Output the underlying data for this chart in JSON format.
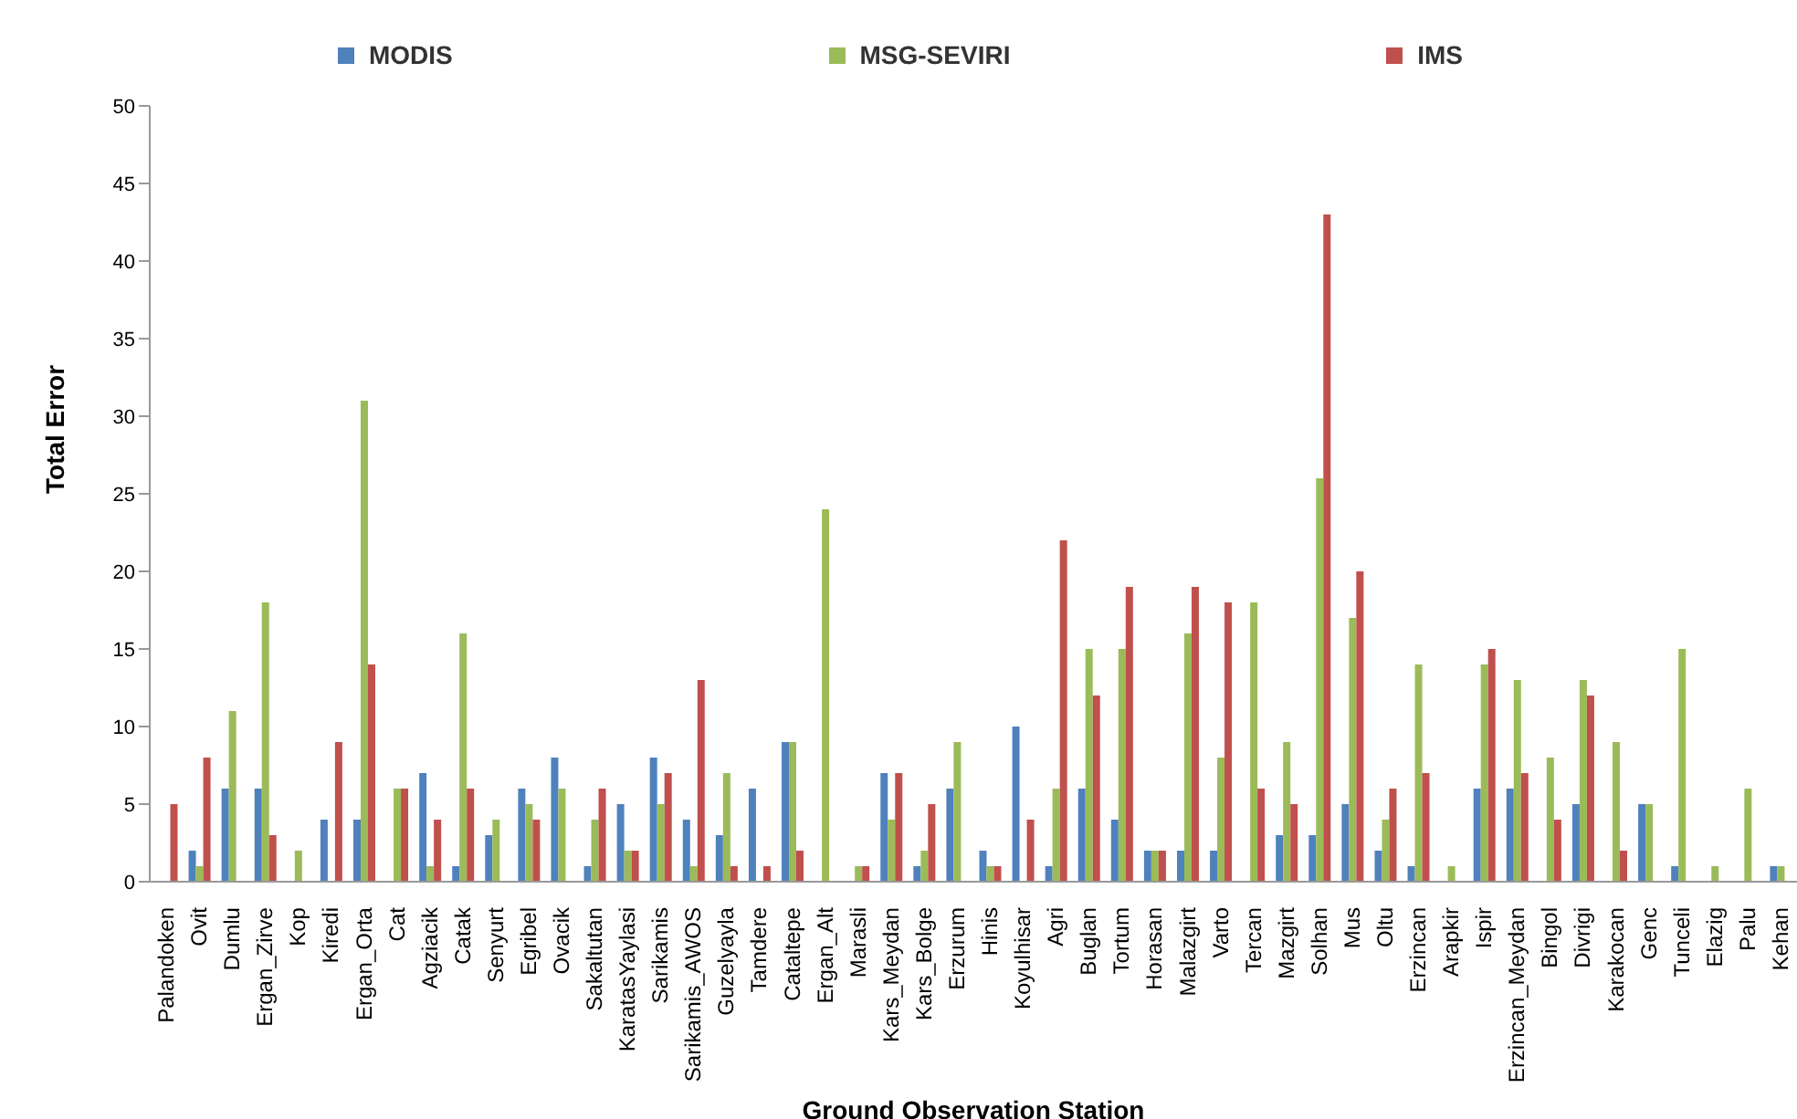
{
  "chart_data": {
    "type": "bar",
    "xlabel": "Ground Observation Station",
    "ylabel": "Total Error",
    "categories": [
      "Palandoken",
      "Ovit",
      "Dumlu",
      "Ergan_Zirve",
      "Kop",
      "Kiredi",
      "Ergan_Orta",
      "Cat",
      "Agziacik",
      "Catak",
      "Senyurt",
      "Egribel",
      "Ovacik",
      "Sakaltutan",
      "KaratasYaylasi",
      "Sarikamis",
      "Sarikamis_AWOS",
      "Guzelyayla",
      "Tamdere",
      "Cataltepe",
      "Ergan_Alt",
      "Marasli",
      "Kars_Meydan",
      "Kars_Bolge",
      "Erzurum",
      "Hinis",
      "Koyulhisar",
      "Agri",
      "Buglan",
      "Tortum",
      "Horasan",
      "Malazgirt",
      "Varto",
      "Tercan",
      "Mazgirt",
      "Solhan",
      "Mus",
      "Oltu",
      "Erzincan",
      "Arapkir",
      "Ispir",
      "Erzincan_Meydan",
      "Bingol",
      "Divrigi",
      "Karakocan",
      "Genc",
      "Tunceli",
      "Elazig",
      "Palu",
      "Kehan"
    ],
    "series": [
      {
        "name": "MODIS",
        "color": "#4f81bd",
        "values": [
          0,
          2,
          6,
          6,
          0,
          4,
          4,
          0,
          7,
          1,
          3,
          6,
          8,
          1,
          5,
          8,
          4,
          3,
          6,
          9,
          0,
          0,
          7,
          1,
          6,
          2,
          10,
          1,
          6,
          4,
          2,
          2,
          2,
          0,
          3,
          3,
          5,
          2,
          1,
          0,
          6,
          6,
          0,
          5,
          0,
          5,
          1,
          0,
          0,
          1
        ]
      },
      {
        "name": "MSG-SEVIRI",
        "color": "#9bbb59",
        "values": [
          0,
          1,
          11,
          18,
          2,
          0,
          31,
          6,
          1,
          16,
          4,
          5,
          6,
          4,
          2,
          5,
          1,
          7,
          0,
          9,
          24,
          1,
          4,
          2,
          9,
          1,
          0,
          6,
          15,
          15,
          2,
          16,
          8,
          18,
          9,
          26,
          17,
          4,
          14,
          1,
          14,
          13,
          8,
          13,
          9,
          5,
          15,
          1,
          6,
          1
        ]
      },
      {
        "name": "IMS",
        "color": "#c0504d",
        "values": [
          5,
          8,
          0,
          3,
          0,
          9,
          14,
          6,
          4,
          6,
          0,
          4,
          0,
          6,
          2,
          7,
          13,
          1,
          1,
          2,
          0,
          1,
          7,
          5,
          0,
          1,
          4,
          22,
          12,
          19,
          2,
          19,
          18,
          6,
          5,
          43,
          20,
          6,
          7,
          0,
          15,
          7,
          4,
          12,
          2,
          0,
          0,
          0,
          0,
          0
        ]
      }
    ],
    "ylim": [
      0,
      50
    ],
    "yticks": [
      0,
      5,
      10,
      15,
      20,
      25,
      30,
      35,
      40,
      45,
      50
    ],
    "grid": false,
    "legend": "top"
  }
}
